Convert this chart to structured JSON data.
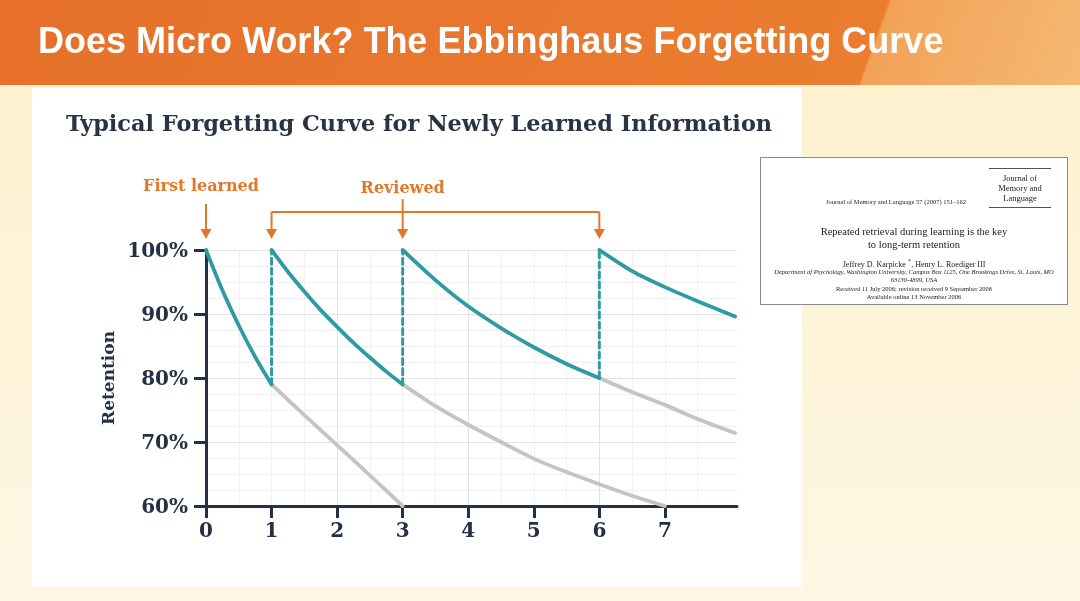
{
  "chart_data": {
    "type": "line",
    "title": "Does Micro Work? The Ebbinghaus Forgetting Curve",
    "subtitle": "Typical Forgetting Curve for Newly Learned Information",
    "ylabel": "Retention",
    "xlim": [
      0,
      8.1
    ],
    "xticks": [
      0,
      1,
      2,
      3,
      4,
      5,
      6,
      7
    ],
    "ylim": [
      60,
      100
    ],
    "yticks": [
      {
        "value": 60,
        "label": "60%"
      },
      {
        "value": 70,
        "label": "70%"
      },
      {
        "value": 80,
        "label": "80%"
      },
      {
        "value": 90,
        "label": "90%"
      },
      {
        "value": 100,
        "label": "100%"
      }
    ],
    "grid": true,
    "marker": "none",
    "line_style": "solid",
    "series": [
      {
        "color": "#c4c4c4",
        "x": [
          1,
          1.5,
          2,
          2.5,
          3
        ],
        "values": [
          79,
          74.2,
          69.5,
          64.8,
          60
        ]
      },
      {
        "color": "#c4c4c4",
        "x": [
          3,
          3.5,
          4,
          4.5,
          5,
          5.5,
          6,
          6.5,
          7
        ],
        "values": [
          79,
          75.6,
          72.7,
          70,
          67.4,
          65.3,
          63.4,
          61.6,
          60
        ]
      },
      {
        "color": "#c4c4c4",
        "x": [
          6,
          6.5,
          7,
          7.5,
          8.07
        ],
        "values": [
          80,
          77.8,
          75.8,
          73.6,
          71.4
        ]
      },
      {
        "color": "#2e9ba0",
        "x": [
          0,
          0.25,
          0.5,
          0.75,
          1
        ],
        "values": [
          100,
          93.7,
          88.2,
          83.3,
          79
        ]
      },
      {
        "color": "#2e9ba0",
        "x": [
          1,
          1.25,
          1.5,
          1.75,
          2,
          2.25,
          2.5,
          2.75,
          3
        ],
        "values": [
          100,
          96.6,
          93.5,
          90.6,
          88,
          85.5,
          83.2,
          81,
          79
        ]
      },
      {
        "color": "#2e9ba0",
        "x": [
          3,
          3.5,
          4,
          4.5,
          5,
          5.5,
          6
        ],
        "values": [
          100,
          95.3,
          91.2,
          87.8,
          84.8,
          82.2,
          80
        ]
      },
      {
        "color": "#2e9ba0",
        "x": [
          6,
          6.5,
          7,
          7.5,
          8.07
        ],
        "values": [
          100,
          96.7,
          94.2,
          92,
          89.6
        ]
      },
      {
        "color": "#2e9ba0",
        "line_style": "dashed",
        "x": [
          1,
          1
        ],
        "values": [
          79,
          100
        ]
      },
      {
        "color": "#2e9ba0",
        "line_style": "dashed",
        "x": [
          3,
          3
        ],
        "values": [
          79,
          100
        ]
      },
      {
        "color": "#2e9ba0",
        "line_style": "dashed",
        "x": [
          6,
          6
        ],
        "values": [
          80,
          100
        ]
      }
    ],
    "annotations": [
      "First learned",
      "Reviewed",
      "Journal of Memory and Language",
      "Journal of Memory and Language 57 (2007) 151–162",
      "Repeated retrieval during learning is the key to long-term retention",
      "Jeffrey D. Karpicke $^{*}$, Henry L. Roediger III",
      "Department of Psychology, Washington University, Campus Box 1125, One Brookings Drive, St. Louis, MO 63130-4899, USA",
      "Received 11 July 2006; revision received 9 September 2006",
      "Available online 13 November 2006"
    ]
  }
}
